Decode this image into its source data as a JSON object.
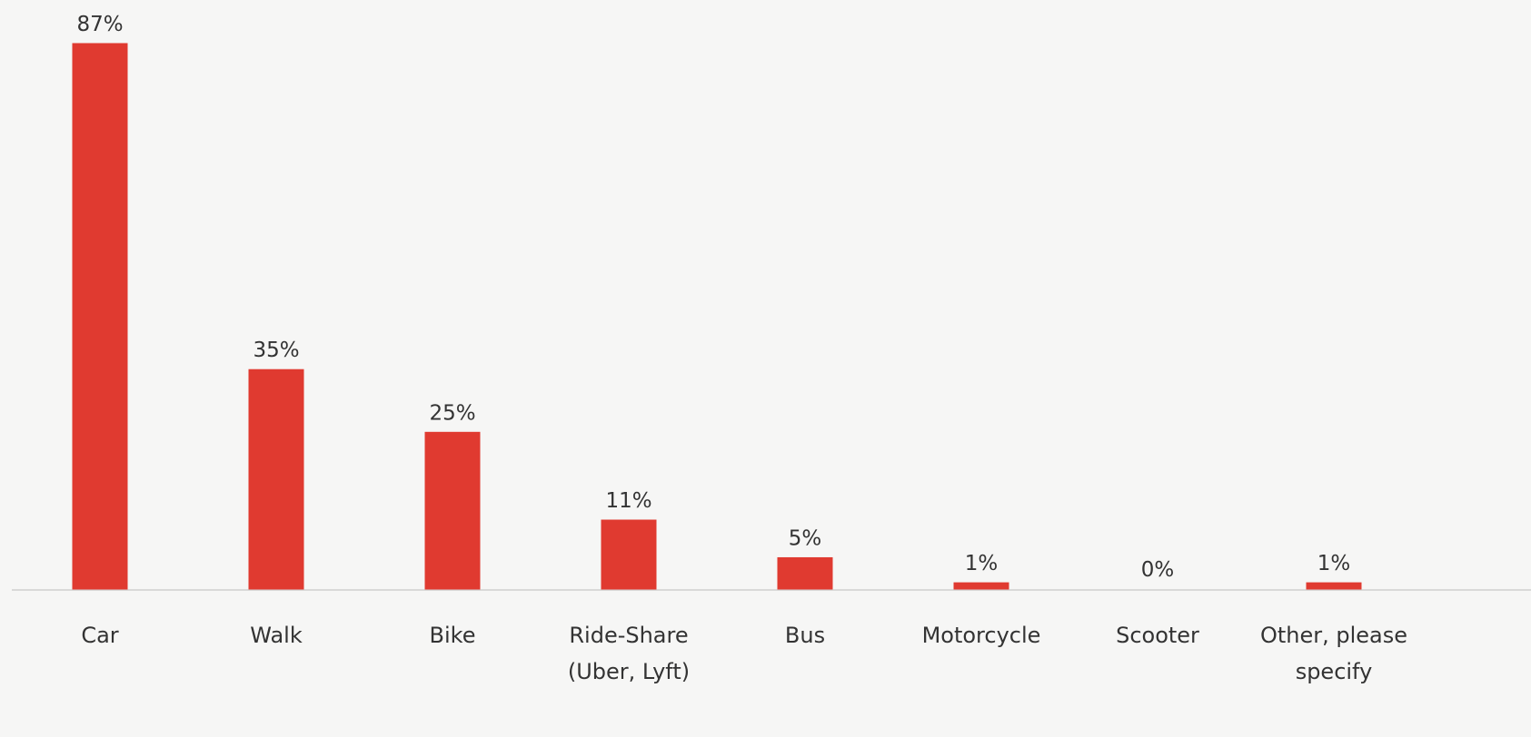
{
  "chart_data": {
    "type": "bar",
    "categories": [
      "Car",
      "Walk",
      "Bike",
      "Ride-Share (Uber, Lyft)",
      "Bus",
      "Motorcycle",
      "Scooter",
      "Other, please specify"
    ],
    "values": [
      87,
      35,
      25,
      11,
      5,
      1,
      0,
      1
    ],
    "value_labels": [
      "87%",
      "35%",
      "25%",
      "11%",
      "5%",
      "1%",
      "0%",
      "1%"
    ],
    "color": "#e03a30"
  }
}
